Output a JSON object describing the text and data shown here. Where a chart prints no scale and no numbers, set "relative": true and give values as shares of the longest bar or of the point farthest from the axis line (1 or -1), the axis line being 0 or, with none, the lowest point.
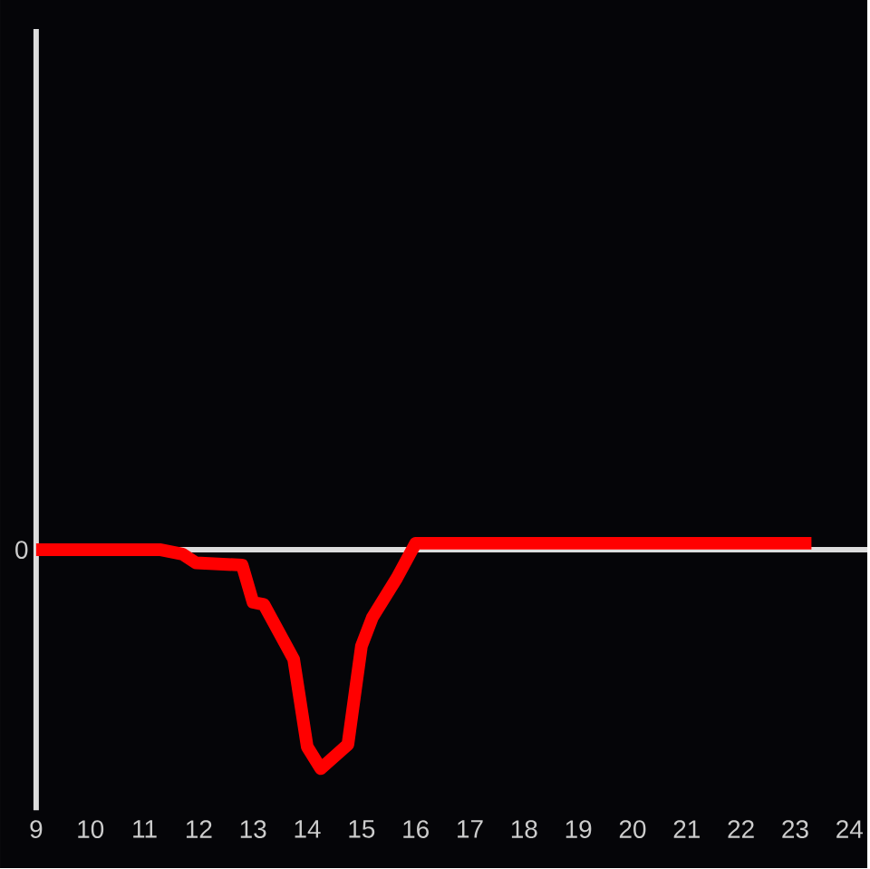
{
  "chart_data": {
    "type": "line",
    "relative": true,
    "x": [
      9,
      11.3,
      11.7,
      11.95,
      12.8,
      13.0,
      13.2,
      13.75,
      14.0,
      14.25,
      14.75,
      15.0,
      15.2,
      15.65,
      16.0,
      23.3
    ],
    "values": [
      0,
      0,
      -0.02,
      -0.06,
      -0.07,
      -0.24,
      -0.25,
      -0.5,
      -0.9,
      -1,
      -0.89,
      -0.44,
      -0.31,
      -0.13,
      0.03,
      0.03
    ],
    "color": "#ff0000",
    "xlim": [
      9,
      24.33
    ],
    "xticks": [
      9,
      10,
      11,
      12,
      13,
      14,
      15,
      16,
      17,
      18,
      19,
      20,
      21,
      22,
      23,
      24
    ],
    "ref_lines": [
      {
        "axis": "y",
        "value": 0,
        "label": "0",
        "color": "#dddddd"
      }
    ]
  }
}
